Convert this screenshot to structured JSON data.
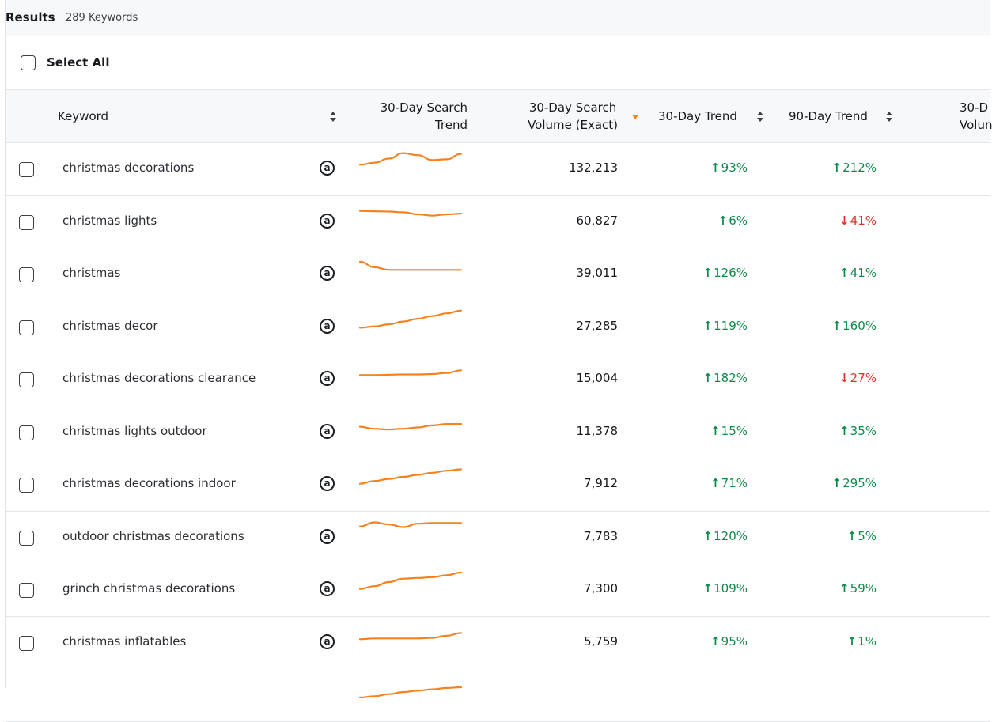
{
  "header": {
    "title": "Results",
    "count": "289 Keywords"
  },
  "select_all": {
    "label": "Select All"
  },
  "columns": {
    "keyword": "Keyword",
    "search_trend_l1": "30-Day Search",
    "search_trend_l2": "Trend",
    "volume_l1": "30-Day Search",
    "volume_l2": "Volume (Exact)",
    "trend30": "30-Day Trend",
    "trend90": "90-Day Trend",
    "next_l1": "30-D",
    "next_l2": "Volun"
  },
  "colors": {
    "accent": "#f5821f",
    "positive": "#0f8a4b",
    "negative": "#e0322a"
  },
  "icons": {
    "marketplace": "amazon-a-icon",
    "up": "arrow-up-icon",
    "down": "arrow-down-icon"
  },
  "rows": [
    {
      "keyword": "christmas decorations",
      "volume": "132,213",
      "trend30_dir": "up",
      "trend30": "93%",
      "trend90_dir": "up",
      "trend90": "212%",
      "spark": [
        10,
        13,
        19,
        27,
        24,
        17,
        18,
        26
      ]
    },
    {
      "keyword": "christmas lights",
      "volume": "60,827",
      "trend30_dir": "up",
      "trend30": "6%",
      "trend90_dir": "down",
      "trend90": "41%",
      "spark": [
        20,
        19.5,
        19,
        18,
        15,
        13,
        15,
        16
      ]
    },
    {
      "keyword": "christmas",
      "volume": "39,011",
      "trend30_dir": "up",
      "trend30": "126%",
      "trend90_dir": "up",
      "trend90": "41%",
      "spark": [
        22,
        14,
        10,
        10,
        10,
        10,
        10,
        10
      ]
    },
    {
      "keyword": "christmas decor",
      "volume": "27,285",
      "trend30_dir": "up",
      "trend30": "119%",
      "trend90_dir": "up",
      "trend90": "160%",
      "spark": [
        3,
        5,
        8,
        12,
        16,
        20,
        24,
        28
      ]
    },
    {
      "keyword": "christmas decorations clearance",
      "volume": "15,004",
      "trend30_dir": "up",
      "trend30": "182%",
      "trend90_dir": "down",
      "trend90": "27%",
      "spark": [
        10,
        10,
        10.5,
        11,
        11,
        11.5,
        13,
        17
      ]
    },
    {
      "keyword": "christmas lights outdoor",
      "volume": "11,378",
      "trend30_dir": "up",
      "trend30": "15%",
      "trend90_dir": "up",
      "trend90": "35%",
      "spark": [
        12,
        9,
        8,
        9,
        11,
        14,
        16,
        16
      ]
    },
    {
      "keyword": "christmas decorations indoor",
      "volume": "7,912",
      "trend30_dir": "up",
      "trend30": "71%",
      "trend90_dir": "up",
      "trend90": "295%",
      "spark": [
        5,
        9,
        12,
        15,
        18,
        21,
        24,
        26
      ]
    },
    {
      "keyword": "outdoor christmas decorations",
      "volume": "7,783",
      "trend30_dir": "up",
      "trend30": "120%",
      "trend90_dir": "up",
      "trend90": "5%",
      "spark": [
        20,
        26,
        23,
        19,
        24,
        25,
        25,
        25
      ]
    },
    {
      "keyword": "grinch christmas decorations",
      "volume": "7,300",
      "trend30_dir": "up",
      "trend30": "109%",
      "trend90_dir": "up",
      "trend90": "59%",
      "spark": [
        5,
        9,
        15,
        20,
        21,
        22,
        25,
        29
      ]
    },
    {
      "keyword": "christmas inflatables",
      "volume": "5,759",
      "trend30_dir": "up",
      "trend30": "95%",
      "trend90_dir": "up",
      "trend90": "1%",
      "spark": [
        9,
        10,
        10,
        10,
        10,
        11,
        14,
        18
      ]
    },
    {
      "keyword": "",
      "volume": "",
      "trend30_dir": "",
      "trend30": "",
      "trend90_dir": "",
      "trend90": "",
      "spark": [
        0,
        2,
        5,
        8,
        10,
        12,
        14,
        15
      ]
    }
  ]
}
